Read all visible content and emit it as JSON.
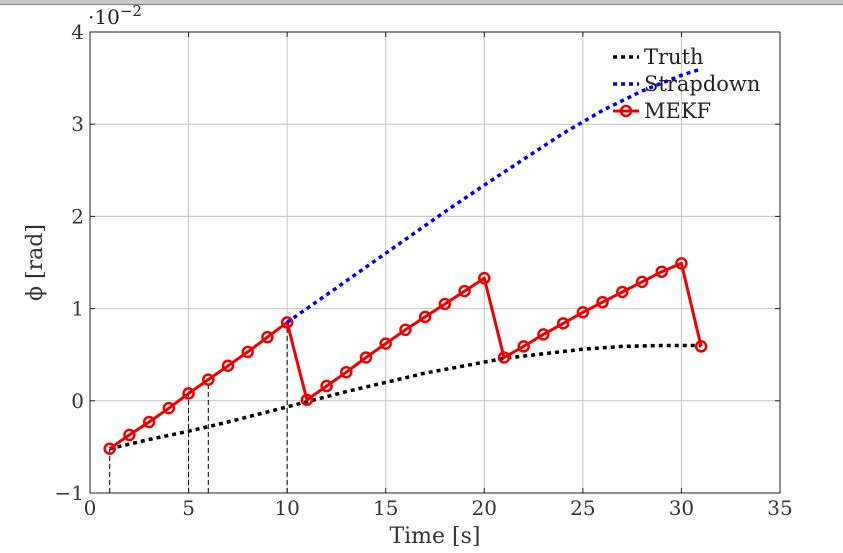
{
  "chart_data": {
    "type": "line",
    "xlabel": "Time [s]",
    "ylabel": "ϕ [rad]",
    "y_exponent_base": "·10",
    "y_exponent_power": "−2",
    "xlim": [
      0,
      35
    ],
    "ylim": [
      -1,
      4
    ],
    "y_scale_factor": 0.01,
    "xticks": [
      0,
      5,
      10,
      15,
      20,
      25,
      30,
      35
    ],
    "yticks": [
      -1,
      0,
      1,
      2,
      3,
      4
    ],
    "xtick_labels": [
      "0",
      "5",
      "10",
      "15",
      "20",
      "25",
      "30",
      "35"
    ],
    "ytick_labels": [
      "−1",
      "0",
      "1",
      "2",
      "3",
      "4"
    ],
    "grid": true,
    "legend_position": "top-right",
    "series": [
      {
        "name": "Truth",
        "style": "dotted",
        "color": "#000000",
        "x": [
          1,
          3,
          5,
          7,
          9,
          11,
          13,
          15,
          17,
          19,
          21,
          23,
          25,
          27,
          29,
          31
        ],
        "y": [
          -0.52,
          -0.42,
          -0.33,
          -0.23,
          -0.12,
          -0.01,
          0.1,
          0.2,
          0.3,
          0.38,
          0.46,
          0.51,
          0.56,
          0.59,
          0.6,
          0.6
        ]
      },
      {
        "name": "Strapdown",
        "style": "dotted",
        "color": "#0000ee",
        "x": [
          10,
          12,
          14,
          16,
          18,
          20,
          22,
          24,
          26,
          28,
          30,
          31
        ],
        "y": [
          0.85,
          1.15,
          1.45,
          1.75,
          2.05,
          2.34,
          2.62,
          2.9,
          3.15,
          3.36,
          3.53,
          3.6
        ]
      },
      {
        "name": "MEKF",
        "style": "solid-circle",
        "color": "#ee0000",
        "x": [
          1,
          2,
          3,
          4,
          5,
          6,
          7,
          8,
          9,
          10,
          11,
          12,
          13,
          14,
          15,
          16,
          17,
          18,
          19,
          20,
          21,
          22,
          23,
          24,
          25,
          26,
          27,
          28,
          29,
          30,
          31
        ],
        "y": [
          -0.52,
          -0.37,
          -0.23,
          -0.08,
          0.08,
          0.23,
          0.38,
          0.53,
          0.69,
          0.85,
          0.01,
          0.16,
          0.31,
          0.47,
          0.62,
          0.77,
          0.91,
          1.05,
          1.19,
          1.33,
          0.47,
          0.59,
          0.72,
          0.84,
          0.96,
          1.07,
          1.18,
          1.29,
          1.4,
          1.49,
          0.59
        ]
      }
    ],
    "vertical_markers": [
      {
        "x": 1,
        "y_top": -0.52
      },
      {
        "x": 5,
        "y_top": 0.08
      },
      {
        "x": 6,
        "y_top": 0.23
      },
      {
        "x": 10,
        "y_top": 0.85
      }
    ]
  }
}
